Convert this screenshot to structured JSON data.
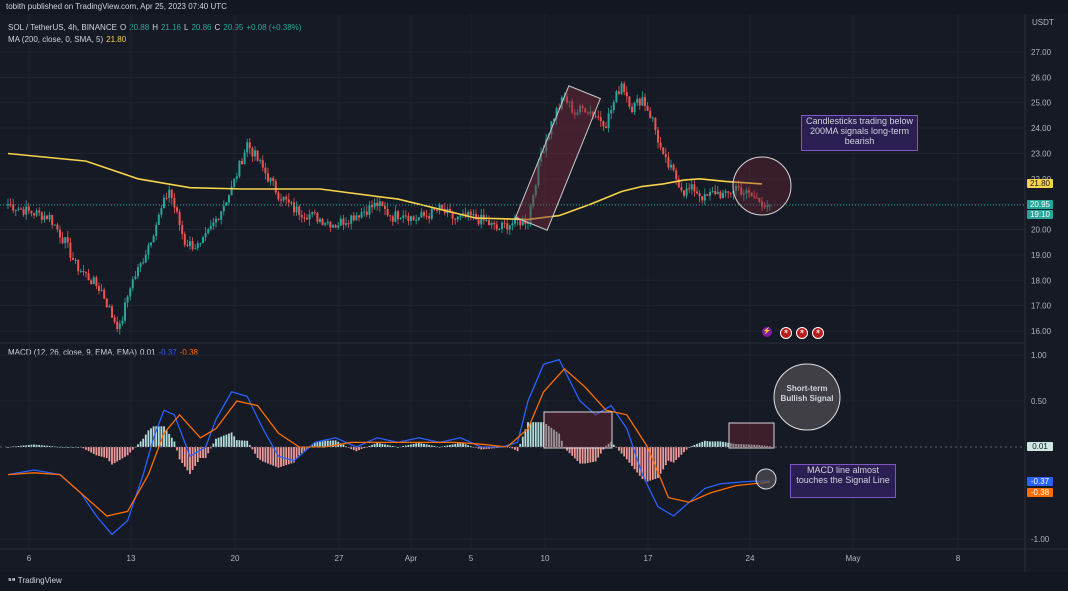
{
  "header": {
    "publish_line": "tobith published on TradingView.com, Apr 25, 2023 07:40 UTC",
    "symbol": "SOL / TetherUS, 4h, BINANCE",
    "ohlc": {
      "o_label": "O",
      "o": "20.88",
      "h_label": "H",
      "h": "21.16",
      "l_label": "L",
      "l": "20.86",
      "c_label": "C",
      "c": "20.95",
      "change": "+0.08 (+0.38%)"
    },
    "ma_label": "MA (200, close, 0, SMA, 5)",
    "ma_value": "21.80",
    "macd_label": "MACD (12, 26, close, 9, EMA, EMA)",
    "macd_hist": "0.01",
    "macd_line": "-0.37",
    "macd_signal": "-0.38"
  },
  "currency": "USDT",
  "colors": {
    "background": "#161a25",
    "up": "#26a69a",
    "down": "#ef5350",
    "ma": "#f5d34b",
    "macd": "#2962ff",
    "signal": "#ff6d00",
    "annotation_box": "#2a1e52"
  },
  "price_tags": {
    "ma": "21.80",
    "last": "20.95",
    "countdown": "19:10"
  },
  "macd_tags": {
    "hist": "0.01",
    "macd": "-0.37",
    "signal": "-0.38"
  },
  "annotations": {
    "bearish": "Candlesticks trading below 200MA signals long-term bearish",
    "bullish": "Short-term Bullish Signal",
    "macd": "MACD line almost touches the Signal Line"
  },
  "footer": {
    "brand": "TradingView"
  },
  "icons": [
    "lightning-icon",
    "us-flag-icon",
    "us-flag-icon",
    "us-flag-icon"
  ],
  "chart_data": [
    {
      "type": "candlestick",
      "title": "SOL / TetherUS, 4h, BINANCE",
      "x_ticks": [
        "6",
        "13",
        "20",
        "27",
        "Apr",
        "5",
        "10",
        "17",
        "24",
        "May",
        "8"
      ],
      "y_ticks": [
        "27.00",
        "26.00",
        "25.00",
        "24.00",
        "23.00",
        "22.00",
        "21.00",
        "20.00",
        "19.00",
        "18.00",
        "17.00",
        "16.00"
      ],
      "ylim": [
        15.6,
        27.5
      ],
      "price_path": {
        "x_index": [
          0,
          8,
          16,
          22,
          26,
          30,
          36,
          40,
          43,
          47,
          51,
          54,
          58,
          62,
          68,
          74,
          80,
          86,
          92,
          98,
          104,
          110,
          118,
          126,
          134,
          142,
          148,
          152,
          156,
          162,
          166,
          172,
          178,
          184,
          188,
          192,
          196,
          200,
          205,
          210,
          214,
          218,
          222,
          226,
          230,
          236,
          240,
          244,
          248,
          252,
          256,
          260,
          264,
          268,
          272,
          276,
          280,
          284,
          288,
          293
        ],
        "close": [
          21.0,
          20.7,
          20.5,
          19.5,
          18.6,
          18.2,
          17.6,
          16.6,
          16.1,
          17.8,
          18.6,
          19.4,
          20.5,
          21.6,
          19.5,
          19.3,
          20.4,
          21.6,
          23.4,
          22.4,
          21.4,
          20.8,
          20.5,
          20.2,
          20.6,
          21.0,
          20.5,
          20.7,
          20.4,
          20.6,
          20.8,
          20.4,
          20.5,
          20.3,
          20.0,
          20.2,
          20.3,
          20.4,
          23.0,
          24.5,
          25.2,
          24.6,
          24.8,
          24.5,
          24.2,
          25.8,
          24.8,
          25.2,
          24.3,
          22.8,
          22.2,
          21.5,
          21.6,
          21.2,
          21.5,
          21.3,
          21.7,
          21.4,
          21.2,
          20.95
        ]
      },
      "ma200": {
        "name": "MA (200, close, 0, SMA, 5)",
        "x_index": [
          0,
          30,
          50,
          70,
          90,
          120,
          150,
          180,
          200,
          212,
          224,
          236,
          244,
          252,
          260,
          266,
          276,
          290
        ],
        "values": [
          23.0,
          22.7,
          22.0,
          21.65,
          21.6,
          21.6,
          21.2,
          20.45,
          20.4,
          20.55,
          21.0,
          21.5,
          21.7,
          21.8,
          21.95,
          22.0,
          21.9,
          21.8
        ]
      },
      "last_price": 20.95
    },
    {
      "type": "line",
      "title": "MACD (12, 26, close, 9, EMA, EMA)",
      "x_ticks": [
        "6",
        "13",
        "20",
        "27",
        "Apr",
        "5",
        "10",
        "17",
        "24",
        "May",
        "8"
      ],
      "y_ticks": [
        "1.00",
        "0.50",
        "-1.00"
      ],
      "ylim": [
        -1.1,
        1.05
      ],
      "series": [
        {
          "name": "MACD",
          "x_index": [
            0,
            10,
            20,
            28,
            34,
            40,
            46,
            52,
            56,
            60,
            64,
            70,
            76,
            80,
            86,
            92,
            98,
            104,
            110,
            118,
            126,
            134,
            142,
            150,
            158,
            166,
            174,
            182,
            190,
            196,
            200,
            206,
            212,
            220,
            226,
            232,
            238,
            244,
            250,
            256,
            262,
            268,
            274,
            282,
            288,
            293
          ],
          "values": [
            -0.3,
            -0.25,
            -0.3,
            -0.5,
            -0.75,
            -0.95,
            -0.8,
            -0.3,
            0.1,
            0.4,
            0.35,
            -0.1,
            0.0,
            0.3,
            0.6,
            0.55,
            0.2,
            -0.1,
            -0.15,
            0.05,
            0.1,
            0.0,
            0.1,
            0.05,
            0.1,
            0.05,
            0.1,
            0.0,
            0.0,
            0.05,
            0.5,
            0.9,
            0.95,
            0.5,
            0.35,
            0.45,
            0.2,
            -0.3,
            -0.65,
            -0.75,
            -0.6,
            -0.45,
            -0.4,
            -0.38,
            -0.37,
            -0.37
          ]
        },
        {
          "name": "Signal",
          "x_index": [
            0,
            10,
            20,
            30,
            38,
            46,
            54,
            60,
            66,
            74,
            80,
            88,
            96,
            104,
            112,
            122,
            132,
            142,
            152,
            162,
            172,
            182,
            192,
            200,
            206,
            214,
            222,
            230,
            238,
            246,
            254,
            262,
            270,
            280,
            293
          ],
          "values": [
            -0.3,
            -0.28,
            -0.3,
            -0.55,
            -0.75,
            -0.7,
            -0.3,
            0.15,
            0.35,
            0.1,
            0.2,
            0.5,
            0.45,
            0.15,
            0.0,
            0.0,
            0.05,
            0.05,
            0.05,
            0.05,
            0.05,
            0.03,
            0.0,
            0.2,
            0.6,
            0.85,
            0.65,
            0.4,
            0.35,
            0.0,
            -0.55,
            -0.6,
            -0.5,
            -0.42,
            -0.38
          ]
        }
      ],
      "histogram_last": 0.01
    }
  ]
}
